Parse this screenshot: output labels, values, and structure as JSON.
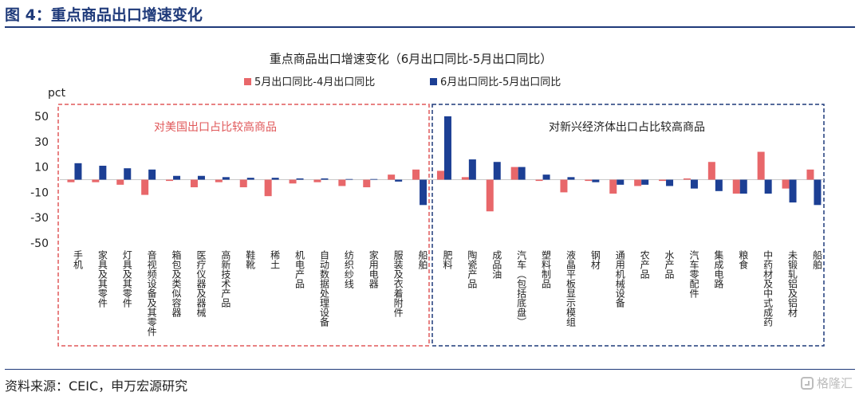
{
  "header": {
    "figure_title": "图 4：重点商品出口增速变化"
  },
  "footer": {
    "source": "资料来源：CEIC，申万宏源研究",
    "watermark": "格隆汇"
  },
  "colors": {
    "series1": "#e8676a",
    "series2": "#1c3f94",
    "frame_left": "#e0585a",
    "frame_right": "#1f3a7a",
    "title_text": "#1f3a7a"
  },
  "chart_data": {
    "type": "bar",
    "title": "重点商品出口增速变化（6月出口同比-5月出口同比）",
    "ylabel": "pct",
    "ylim": [
      -50,
      50
    ],
    "yticks": [
      50,
      30,
      10,
      -10,
      -30,
      -50
    ],
    "legend_position": "top",
    "grid": false,
    "groups": [
      {
        "label": "对美国出口占比较高商品",
        "start": 0,
        "end": 14
      },
      {
        "label": "对新兴经济体出口占比较高商品",
        "start": 15,
        "end": 31
      }
    ],
    "categories": [
      "手机",
      "家具及其零件",
      "灯具及其零件",
      "音视频设备及其零件",
      "箱包及类似容器",
      "医疗仪器及器械",
      "高新技术产品",
      "鞋靴",
      "稀土",
      "机电产品",
      "自动数据处理设备",
      "纺织纱线",
      "家用电器",
      "服装及衣着附件",
      "船舶",
      "肥料",
      "陶瓷产品",
      "成品油",
      "汽车（包括底盘）",
      "塑料制品",
      "液晶平板显示模组",
      "钢材",
      "通用机械设备",
      "农产品",
      "水产品",
      "汽车零配件",
      "集成电路",
      "粮食",
      "中药材及中式成药",
      "未锻轧铝及铝材",
      "船舶"
    ],
    "series": [
      {
        "name": "5月出口同比-4月出口同比",
        "values": [
          -2,
          -2,
          -4,
          -12,
          -1,
          -6,
          -2,
          -6,
          -13,
          -3,
          -2,
          -5,
          -6,
          4,
          8,
          7,
          2,
          -25,
          10,
          -1,
          -10,
          -1,
          -11,
          -5,
          -1,
          1,
          14,
          -11,
          22,
          -7,
          8
        ]
      },
      {
        "name": "6月出口同比-5月出口同比",
        "values": [
          13,
          11,
          9,
          8,
          3,
          3,
          2,
          1.5,
          1.5,
          1,
          1,
          0.5,
          0.5,
          -1.5,
          -20,
          50,
          16,
          14,
          10,
          4,
          2,
          -2,
          -4,
          -4,
          -5,
          -7,
          -9,
          -11,
          -11,
          -18,
          -20
        ]
      }
    ]
  }
}
